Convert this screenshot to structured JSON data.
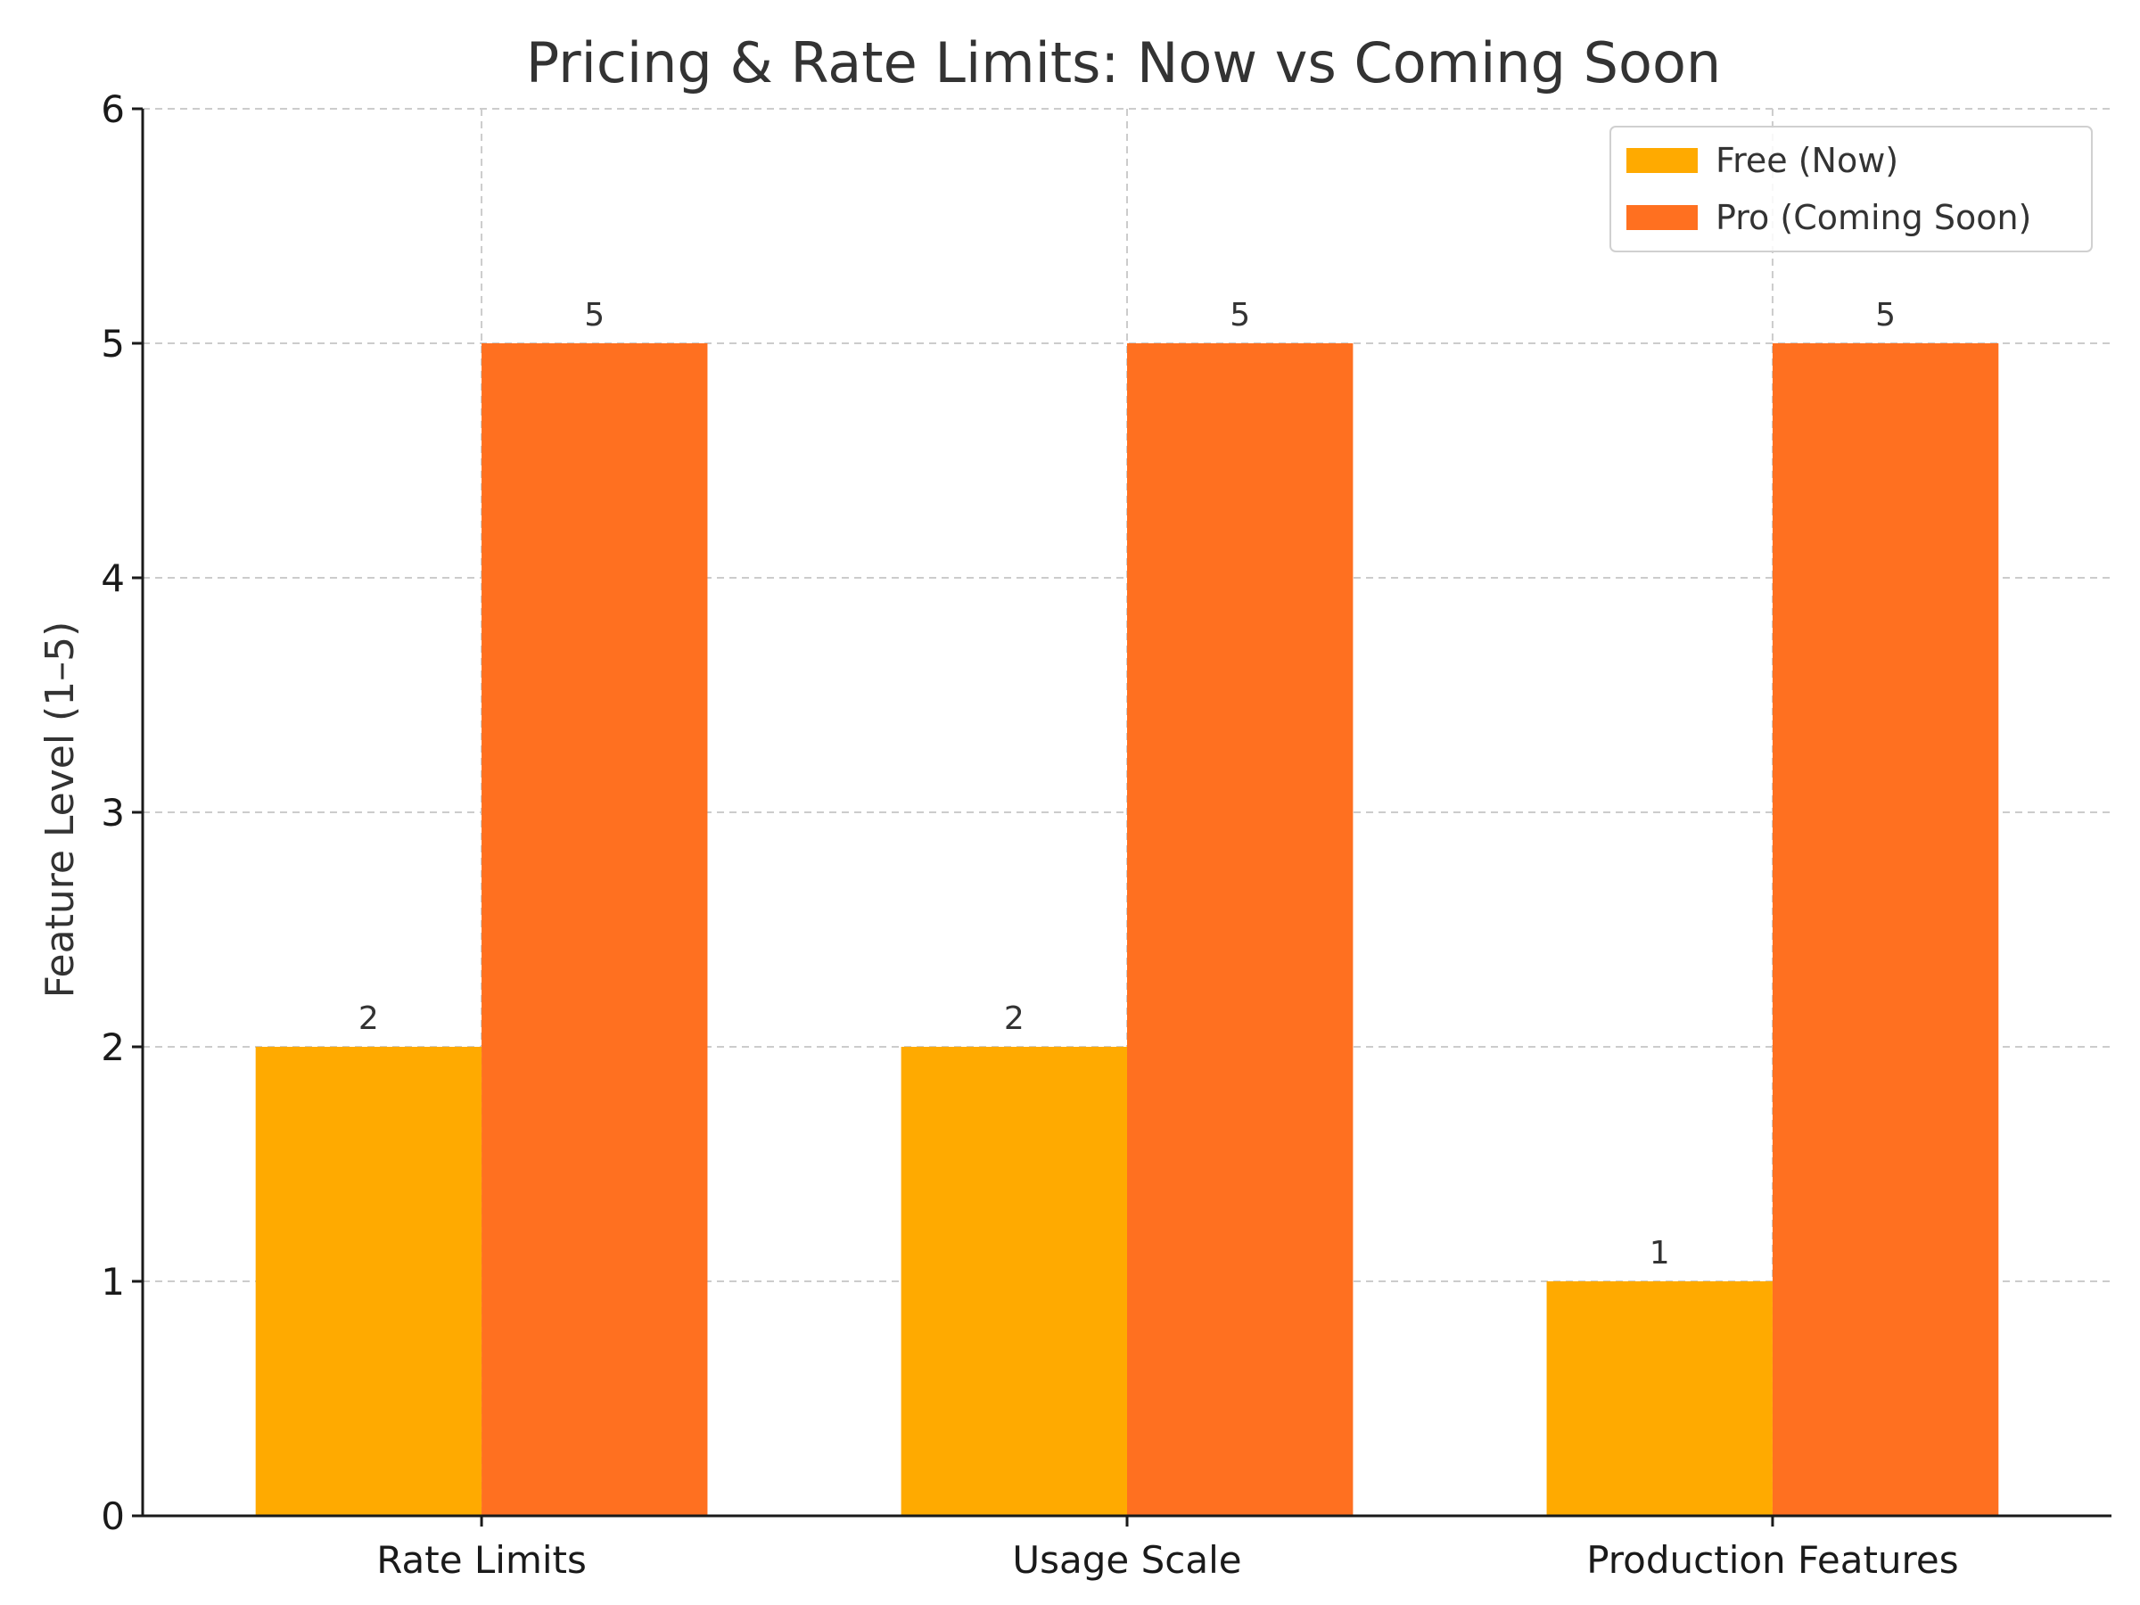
{
  "chart_data": {
    "type": "bar",
    "title": "Pricing & Rate Limits: Now vs Coming Soon",
    "xlabel": "",
    "ylabel": "Feature Level (1–5)",
    "categories": [
      "Rate Limits",
      "Usage Scale",
      "Production Features"
    ],
    "series": [
      {
        "name": "Free (Now)",
        "values": [
          2,
          2,
          1
        ],
        "color": "#FFAA00"
      },
      {
        "name": "Pro (Coming Soon)",
        "values": [
          5,
          5,
          5
        ],
        "color": "#FF7020"
      }
    ],
    "ylim": [
      0,
      6
    ],
    "yticks": [
      0,
      1,
      2,
      3,
      4,
      5,
      6
    ],
    "grid": true,
    "legend": {
      "position": "top-right"
    }
  }
}
